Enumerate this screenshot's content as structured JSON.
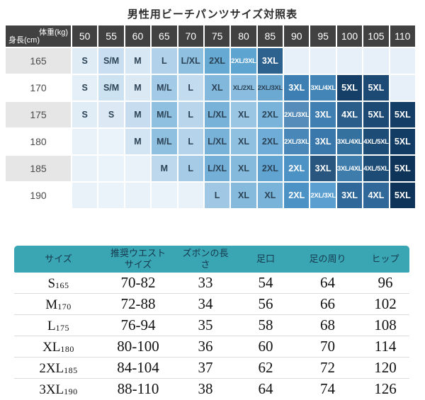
{
  "title": "男性用ビーチパンツサイズ対照表",
  "size_matrix": {
    "corner_top": "体重(kg)",
    "corner_bottom": "身長(cm)",
    "weight_columns": [
      "50",
      "55",
      "60",
      "65",
      "70",
      "75",
      "80",
      "85",
      "90",
      "95",
      "100",
      "105",
      "110"
    ],
    "empty_cell_color": "#e7f0f8",
    "rows": [
      {
        "height": "165",
        "cells": [
          [
            "S",
            "#dfecf6",
            0
          ],
          [
            "S/M",
            "#c9def0",
            0
          ],
          [
            "M",
            "#d7e7f3",
            0
          ],
          [
            "L",
            "#b0d1e9",
            0
          ],
          [
            "L/XL",
            "#8fc0e0",
            0
          ],
          [
            "2XL",
            "#66a9d3",
            0
          ],
          [
            "2XL/3XL",
            "#5ea4d0",
            1
          ],
          [
            "3XL",
            "#2d618e",
            1
          ],
          [
            "",
            "#e7f0f8",
            0
          ],
          [
            "",
            "#e7f0f8",
            0
          ],
          [
            "",
            "#e7f0f8",
            0
          ],
          [
            "",
            "#e7f0f8",
            0
          ],
          [
            "",
            "#e7f0f8",
            0
          ]
        ]
      },
      {
        "height": "170",
        "cells": [
          [
            "S",
            "#e4eff8",
            0
          ],
          [
            "S/M",
            "#cde2f1",
            0
          ],
          [
            "M",
            "#dbe9f4",
            0
          ],
          [
            "M/L",
            "#a3cbe7",
            0
          ],
          [
            "L",
            "#c2dbee",
            0
          ],
          [
            "XL",
            "#82b8dc",
            0
          ],
          [
            "XL/2XL",
            "#8abde0",
            0
          ],
          [
            "2XL/3XL",
            "#6ca9d2",
            0
          ],
          [
            "3XL",
            "#3d7fb2",
            1
          ],
          [
            "3XL/4XL",
            "#4485b7",
            1
          ],
          [
            "5XL",
            "#153f66",
            1
          ],
          [
            "5XL",
            "#1d4a74",
            1
          ],
          [
            "",
            "#e7f0f8",
            0
          ]
        ]
      },
      {
        "height": "175",
        "cells": [
          [
            "S",
            "#e0ecf6",
            0
          ],
          [
            "S",
            "#dce9f4",
            0
          ],
          [
            "M",
            "#c7ddef",
            0
          ],
          [
            "M/L",
            "#8fc0e0",
            0
          ],
          [
            "L",
            "#b8d5ec",
            0
          ],
          [
            "L/XL",
            "#79b2d9",
            0
          ],
          [
            "XL",
            "#9ac6e3",
            0
          ],
          [
            "2XL",
            "#79b3da",
            0
          ],
          [
            "2XL/3XL",
            "#568cba",
            1
          ],
          [
            "3XL",
            "#3f7fb1",
            1
          ],
          [
            "4XL",
            "#2a5d8a",
            1
          ],
          [
            "5XL",
            "#1c4a74",
            1
          ],
          [
            "5XL",
            "#153e66",
            1
          ]
        ]
      },
      {
        "height": "180",
        "cells": [
          [
            "",
            "#e9f1f9",
            0
          ],
          [
            "",
            "#ebf3fa",
            0
          ],
          [
            "M",
            "#d3e4f2",
            0
          ],
          [
            "M/L",
            "#8fc0e0",
            0
          ],
          [
            "L",
            "#b5d3ea",
            0
          ],
          [
            "L/XL",
            "#79b2d9",
            0
          ],
          [
            "XL",
            "#90c0e0",
            0
          ],
          [
            "2XL",
            "#6fadd8",
            0
          ],
          [
            "2XL/3XL",
            "#4987b8",
            1
          ],
          [
            "3XL",
            "#3a77aa",
            1
          ],
          [
            "3XL/4XL",
            "#35719f",
            1
          ],
          [
            "4XL/5XL",
            "#1d4c77",
            1
          ],
          [
            "5XL",
            "#133c64",
            1
          ]
        ]
      },
      {
        "height": "185",
        "cells": [
          [
            "",
            "#e9f1f9",
            0
          ],
          [
            "",
            "#ebf3fa",
            0
          ],
          [
            "",
            "#e9f1f9",
            0
          ],
          [
            "M",
            "#bdd8ed",
            0
          ],
          [
            "L",
            "#a5cbe6",
            0
          ],
          [
            "L/XL",
            "#74afd8",
            0
          ],
          [
            "XL",
            "#85badd",
            0
          ],
          [
            "2XL",
            "#61a4d1",
            0
          ],
          [
            "2XL",
            "#4d92c4",
            1
          ],
          [
            "3XL",
            "#28567f",
            1
          ],
          [
            "3XL/4XL",
            "#3d7cab",
            1
          ],
          [
            "4XL/5XL",
            "#1d4c77",
            1
          ],
          [
            "5XL",
            "#0f3459",
            1
          ]
        ]
      },
      {
        "height": "190",
        "cells": [
          [
            "",
            "#e9f1f9",
            0
          ],
          [
            "",
            "#ebf3fa",
            0
          ],
          [
            "",
            "#e9f1f9",
            0
          ],
          [
            "",
            "#ebf3fa",
            0
          ],
          [
            "",
            "#e9f1f9",
            0
          ],
          [
            "L",
            "#a0c8e4",
            0
          ],
          [
            "XL",
            "#85badd",
            0
          ],
          [
            "XL",
            "#79b3da",
            0
          ],
          [
            "2XL",
            "#4d92c4",
            1
          ],
          [
            "2XL/3XL",
            "#5b9fd0",
            1
          ],
          [
            "3XL",
            "#2f6899",
            1
          ],
          [
            "4XL",
            "#2f6899",
            1
          ],
          [
            "5XL",
            "#0f3459",
            1
          ]
        ]
      }
    ]
  },
  "detail_table": {
    "header_bg": "#3aa6b4",
    "headers": [
      "サイズ",
      "推奨ウエストサイズ",
      "ズボンの長さ",
      "足口",
      "足の周り",
      "ヒップ"
    ],
    "rows": [
      {
        "size": "S",
        "height_sub": "165",
        "waist": "70-82",
        "length": "33",
        "hem": "54",
        "leg": "64",
        "hip": "96"
      },
      {
        "size": "M",
        "height_sub": "170",
        "waist": "72-88",
        "length": "34",
        "hem": "56",
        "leg": "66",
        "hip": "102"
      },
      {
        "size": "L",
        "height_sub": "175",
        "waist": "76-94",
        "length": "35",
        "hem": "58",
        "leg": "68",
        "hip": "108"
      },
      {
        "size": "XL",
        "height_sub": "180",
        "waist": "80-100",
        "length": "36",
        "hem": "60",
        "leg": "70",
        "hip": "114"
      },
      {
        "size": "2XL",
        "height_sub": "185",
        "waist": "84-104",
        "length": "37",
        "hem": "62",
        "leg": "72",
        "hip": "120"
      },
      {
        "size": "3XL",
        "height_sub": "190",
        "waist": "88-110",
        "length": "38",
        "hem": "64",
        "leg": "74",
        "hip": "126"
      }
    ]
  }
}
